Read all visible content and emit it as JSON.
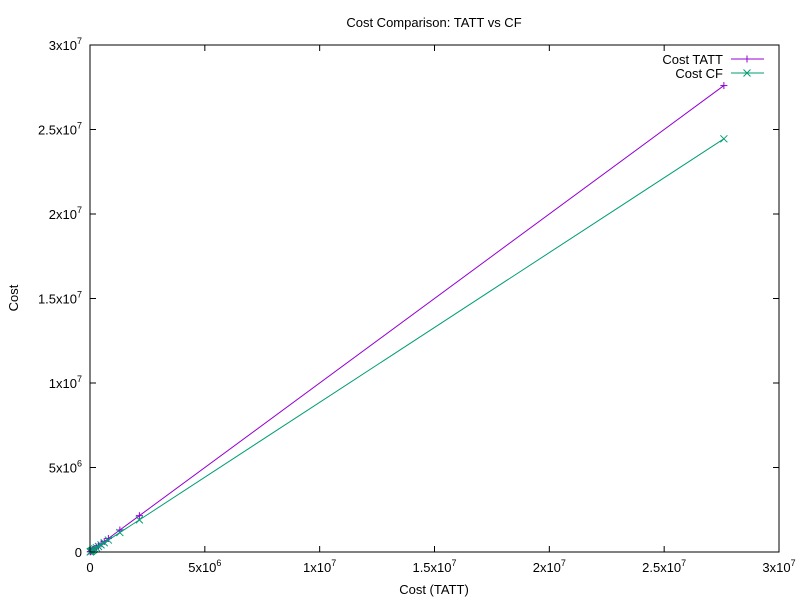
{
  "chart_data": {
    "type": "line",
    "title": "Cost Comparison: TATT vs CF",
    "xlabel": "Cost (TATT)",
    "ylabel": "Cost",
    "xlim": [
      0,
      30000000
    ],
    "ylim": [
      0,
      30000000
    ],
    "grid": false,
    "legend_position": "top-right",
    "x_ticks": [
      {
        "value": 0,
        "base": "0",
        "exp": ""
      },
      {
        "value": 5000000,
        "base": "5x10",
        "exp": "6"
      },
      {
        "value": 10000000,
        "base": "1x10",
        "exp": "7"
      },
      {
        "value": 15000000,
        "base": "1.5x10",
        "exp": "7"
      },
      {
        "value": 20000000,
        "base": "2x10",
        "exp": "7"
      },
      {
        "value": 25000000,
        "base": "2.5x10",
        "exp": "7"
      },
      {
        "value": 30000000,
        "base": "3x10",
        "exp": "7"
      }
    ],
    "y_ticks": [
      {
        "value": 0,
        "base": "0",
        "exp": ""
      },
      {
        "value": 5000000,
        "base": "5x10",
        "exp": "6"
      },
      {
        "value": 10000000,
        "base": "1x10",
        "exp": "7"
      },
      {
        "value": 15000000,
        "base": "1.5x10",
        "exp": "7"
      },
      {
        "value": 20000000,
        "base": "2x10",
        "exp": "7"
      },
      {
        "value": 25000000,
        "base": "2.5x10",
        "exp": "7"
      },
      {
        "value": 30000000,
        "base": "3x10",
        "exp": "7"
      }
    ],
    "x": [
      10000,
      30000,
      60000,
      100000,
      150000,
      210000,
      280000,
      370000,
      480000,
      620000,
      800000,
      1300000,
      2150000,
      27600000
    ],
    "series": [
      {
        "name": "Cost TATT",
        "color": "#9400d3",
        "marker": "plus",
        "values": [
          10000,
          30000,
          60000,
          100000,
          150000,
          210000,
          280000,
          370000,
          480000,
          620000,
          800000,
          1300000,
          2150000,
          27600000
        ]
      },
      {
        "name": "Cost CF",
        "color": "#009e73",
        "marker": "cross",
        "values": [
          9000,
          26000,
          53000,
          88000,
          132000,
          185000,
          247000,
          327000,
          424000,
          548000,
          707000,
          1150000,
          1900000,
          24450000
        ]
      }
    ]
  }
}
